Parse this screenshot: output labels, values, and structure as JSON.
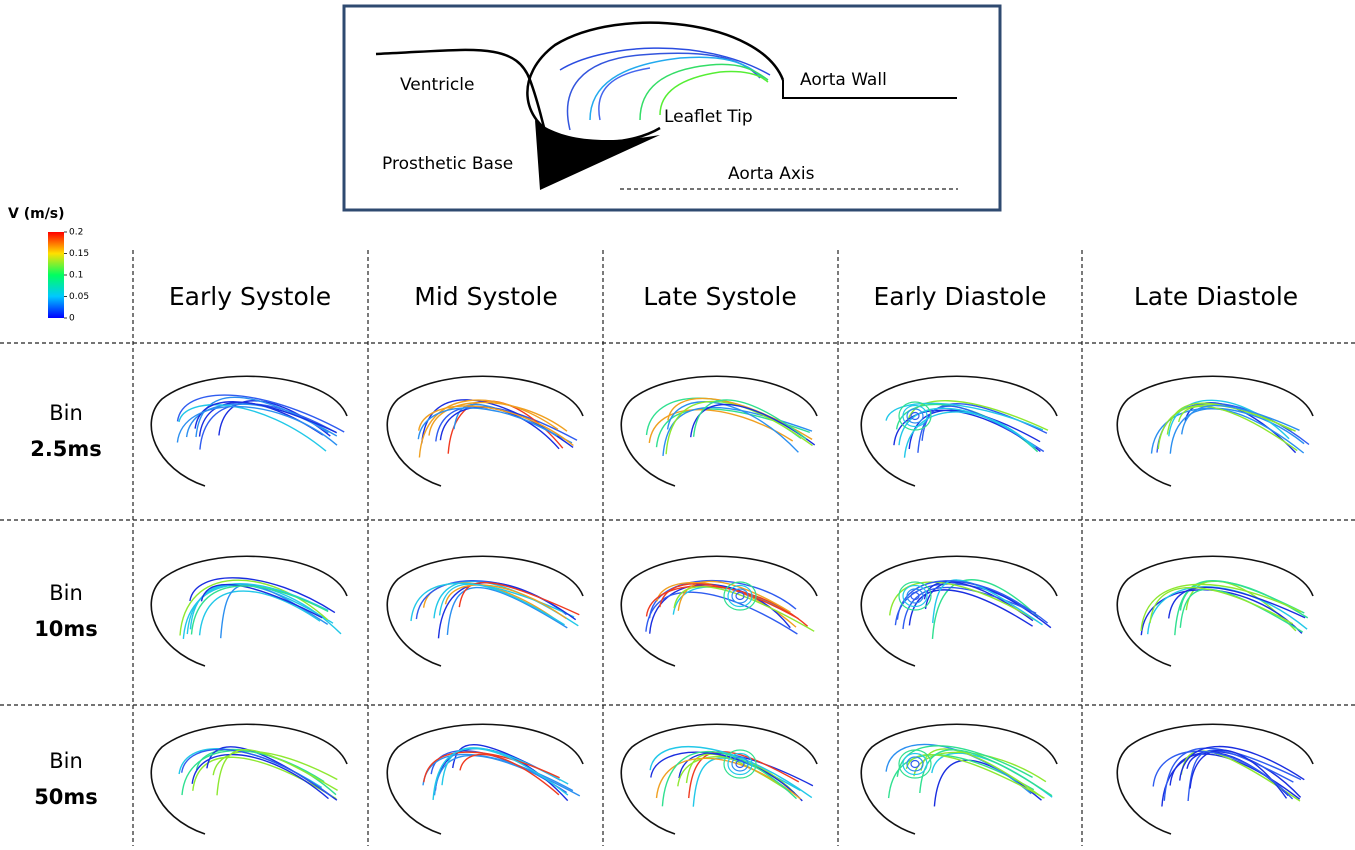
{
  "schematic": {
    "labels": {
      "ventricle": "Ventricle",
      "aorta_wall": "Aorta Wall",
      "leaflet_tip": "Leaflet Tip",
      "prosthetic_base": "Prosthetic Base",
      "aorta_axis": "Aorta Axis"
    }
  },
  "colorbar": {
    "title": "V (m/s)",
    "range": [
      0,
      0.2
    ],
    "ticks": [
      0.2,
      0.15,
      0.1,
      0.05,
      0
    ]
  },
  "grid": {
    "columns": [
      "Early Systole",
      "Mid Systole",
      "Late Systole",
      "Early Diastole",
      "Late Diastole"
    ],
    "rows": [
      {
        "label": "Bin",
        "bin": "2.5ms"
      },
      {
        "label": "Bin",
        "bin": "10ms"
      },
      {
        "label": "Bin",
        "bin": "50ms"
      }
    ]
  }
}
